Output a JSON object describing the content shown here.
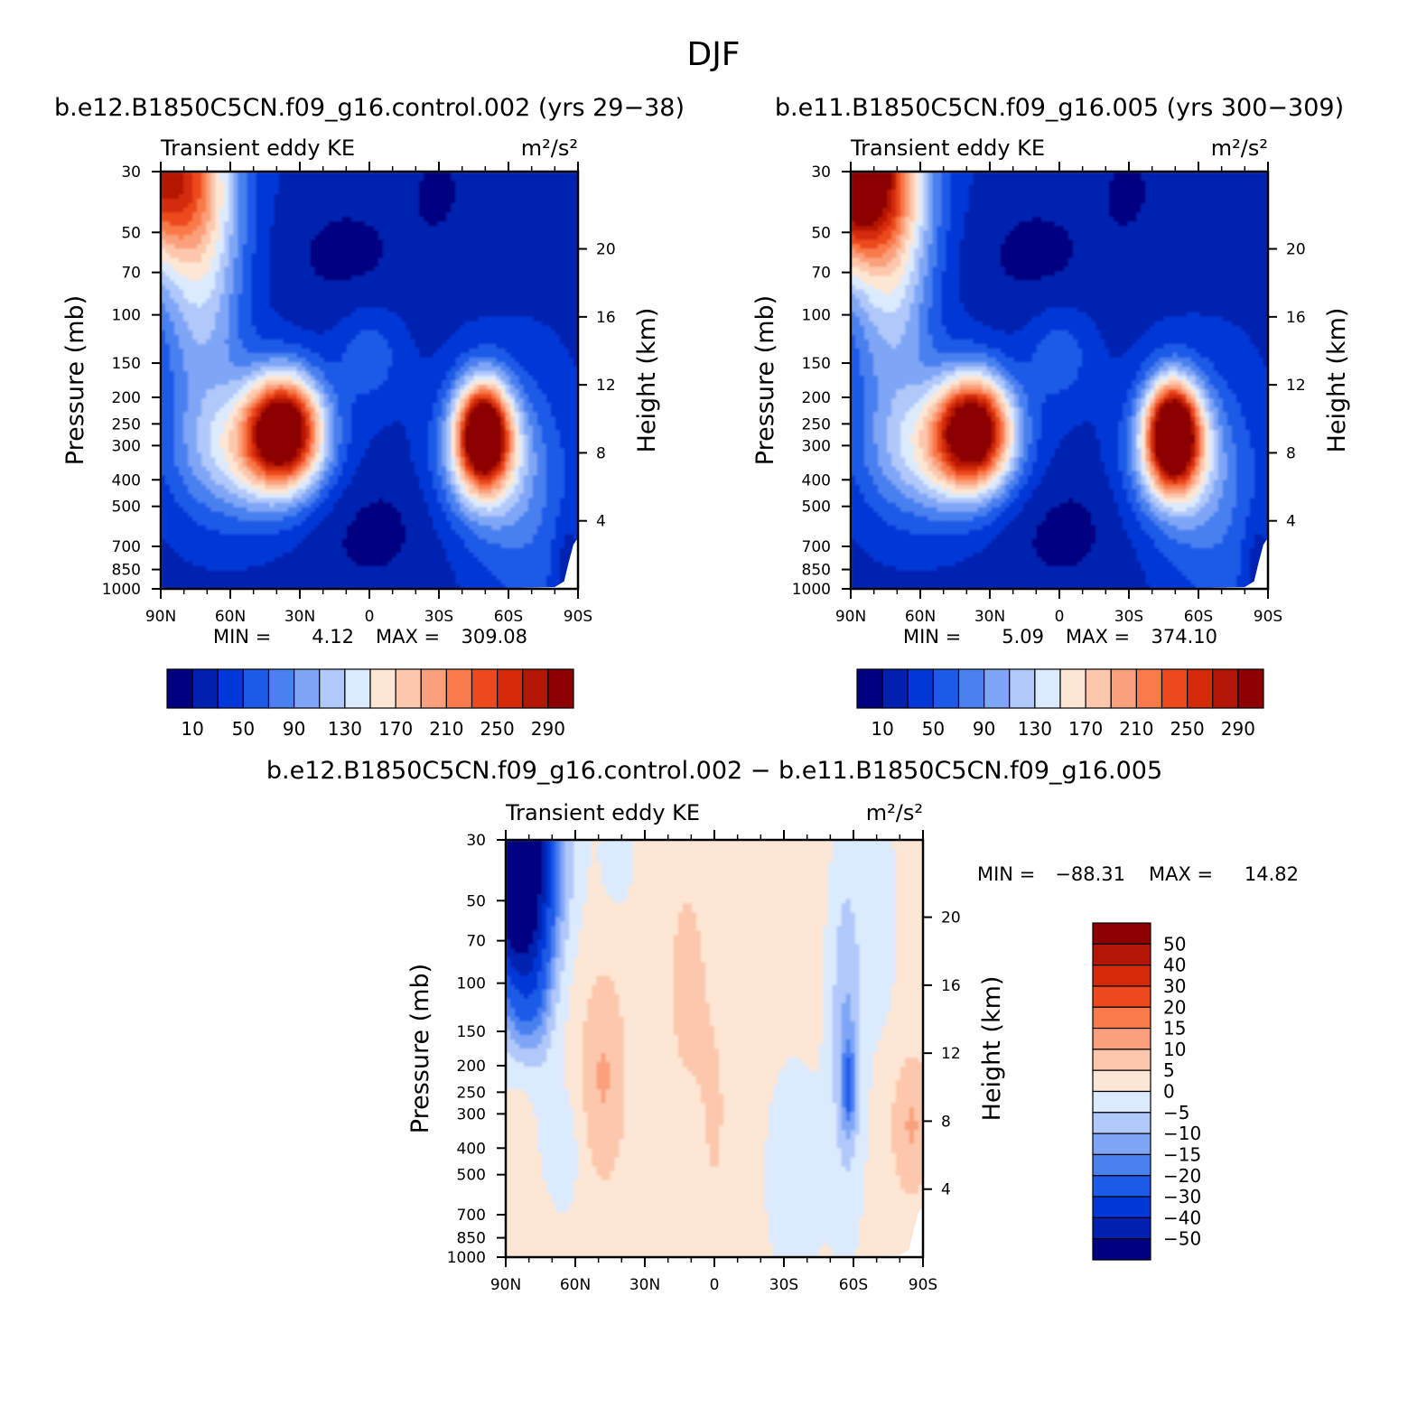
{
  "figure": {
    "title": "DJF",
    "colormap_abs": [
      "#000080",
      "#0020b0",
      "#0038d8",
      "#1e5ae8",
      "#4a80f0",
      "#7fa6f6",
      "#b0c8fa",
      "#dceafd",
      "#fde6d4",
      "#fcc7ac",
      "#fba07c",
      "#f97a4a",
      "#ec4a1c",
      "#d42a08",
      "#b41606",
      "#8c0002"
    ],
    "colormap_diff": [
      "#000080",
      "#0020b0",
      "#0038d8",
      "#1e5ae8",
      "#4a80f0",
      "#7fa6f6",
      "#b0c8fa",
      "#dceafd",
      "#fde6d4",
      "#fcc7ac",
      "#fba07c",
      "#f97a4a",
      "#ec4a1c",
      "#d42a08",
      "#b41606",
      "#8c0002"
    ]
  },
  "chart_data": [
    {
      "type": "heatmap",
      "title": "b.e12.B1850C5CN.f09_g16.control.002 (yrs 29−38)",
      "left_string": "Transient eddy KE",
      "right_string": "m²/s²",
      "xlabel": "",
      "ylabel": "Pressure (mb)",
      "ylabel_right": "Height (km)",
      "x_ticks": [
        "90N",
        "60N",
        "30N",
        "0",
        "30S",
        "60S",
        "90S"
      ],
      "y_ticks": [
        "30",
        "50",
        "70",
        "100",
        "150",
        "200",
        "250",
        "300",
        "400",
        "500",
        "700",
        "850",
        "1000"
      ],
      "y_ticks_right": [
        "20",
        "16",
        "12",
        "8",
        "4"
      ],
      "xlim": [
        90,
        -90
      ],
      "ylim": [
        1000,
        30
      ],
      "y_scale": "log",
      "min_label": "MIN =",
      "min_value": "4.12",
      "max_label": "MAX =",
      "max_value": "309.08",
      "min": 4.12,
      "max": 309.08,
      "colorbar_labels": [
        "10",
        "50",
        "90",
        "130",
        "170",
        "210",
        "250",
        "290"
      ],
      "features": [
        {
          "name": "NH jet max",
          "lat": 37,
          "p": 250,
          "value": 290
        },
        {
          "name": "SH jet max",
          "lat": -49,
          "p": 270,
          "value": 300
        },
        {
          "name": "NH polar stratosphere",
          "lat": 85,
          "p": 30,
          "value": 240
        }
      ]
    },
    {
      "type": "heatmap",
      "title": "b.e11.B1850C5CN.f09_g16.005 (yrs 300−309)",
      "left_string": "Transient eddy KE",
      "right_string": "m²/s²",
      "xlabel": "",
      "ylabel": "Pressure (mb)",
      "ylabel_right": "Height (km)",
      "x_ticks": [
        "90N",
        "60N",
        "30N",
        "0",
        "30S",
        "60S",
        "90S"
      ],
      "y_ticks": [
        "30",
        "50",
        "70",
        "100",
        "150",
        "200",
        "250",
        "300",
        "400",
        "500",
        "700",
        "850",
        "1000"
      ],
      "y_ticks_right": [
        "20",
        "16",
        "12",
        "8",
        "4"
      ],
      "xlim": [
        90,
        -90
      ],
      "ylim": [
        1000,
        30
      ],
      "y_scale": "log",
      "min_label": "MIN =",
      "min_value": "5.09",
      "max_label": "MAX =",
      "max_value": "374.10",
      "min": 5.09,
      "max": 374.1,
      "colorbar_labels": [
        "10",
        "50",
        "90",
        "130",
        "170",
        "210",
        "250",
        "290"
      ],
      "features": [
        {
          "name": "NH jet max",
          "lat": 37,
          "p": 250,
          "value": 280
        },
        {
          "name": "SH jet max",
          "lat": -49,
          "p": 270,
          "value": 310
        },
        {
          "name": "NH polar stratosphere",
          "lat": 85,
          "p": 30,
          "value": 374
        }
      ]
    },
    {
      "type": "heatmap",
      "title": "b.e12.B1850C5CN.f09_g16.control.002 − b.e11.B1850C5CN.f09_g16.005",
      "left_string": "Transient eddy KE",
      "right_string": "m²/s²",
      "xlabel": "",
      "ylabel": "Pressure (mb)",
      "ylabel_right": "Height (km)",
      "x_ticks": [
        "90N",
        "60N",
        "30N",
        "0",
        "30S",
        "60S",
        "90S"
      ],
      "y_ticks": [
        "30",
        "50",
        "70",
        "100",
        "150",
        "200",
        "250",
        "300",
        "400",
        "500",
        "700",
        "850",
        "1000"
      ],
      "y_ticks_right": [
        "20",
        "16",
        "12",
        "8",
        "4"
      ],
      "xlim": [
        90,
        -90
      ],
      "ylim": [
        1000,
        30
      ],
      "y_scale": "log",
      "min_label": "MIN =",
      "min_value": "−88.31",
      "max_label": "MAX =",
      "max_value": "14.82",
      "min": -88.31,
      "max": 14.82,
      "colorbar_labels": [
        "50",
        "40",
        "30",
        "20",
        "15",
        "10",
        "5",
        "0",
        "−5",
        "−10",
        "−15",
        "−20",
        "−30",
        "−40",
        "−50"
      ],
      "features": [
        {
          "name": "NH polar stratosphere deficit",
          "lat": 85,
          "p": 30,
          "value": -88
        },
        {
          "name": "NH midlat positive",
          "lat": 50,
          "p": 220,
          "value": 10
        },
        {
          "name": "SH 60S negative",
          "lat": -58,
          "p": 230,
          "value": -15
        },
        {
          "name": "SH polar positive",
          "lat": -85,
          "p": 330,
          "value": 10
        }
      ]
    }
  ]
}
